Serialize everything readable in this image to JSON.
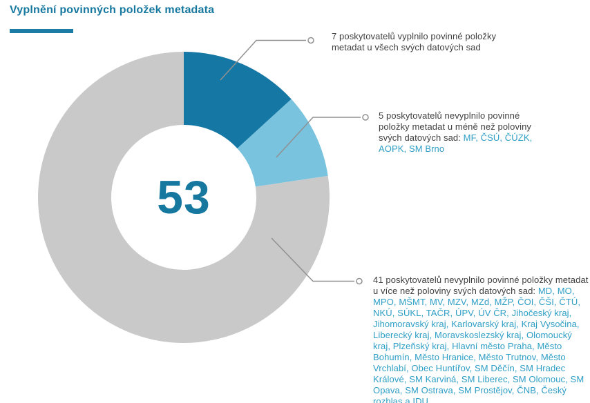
{
  "title": "Vyplnění povinných položek metadata",
  "colors": {
    "accent": "#16789f",
    "segment_dark_blue": "#1578a4",
    "segment_light_blue": "#79c3de",
    "segment_gray": "#c9c9c9",
    "body_text": "#3f3f3f",
    "highlight_text": "#2d9ec5",
    "leader": "#909090"
  },
  "chart_data": {
    "type": "pie",
    "donut": true,
    "title": "Vyplnění povinných položek metadata",
    "center_label": "53",
    "total": 53,
    "legend_position": "none",
    "segments": [
      {
        "name": "vyplnilo povinné položky metadat u všech svých datových sad",
        "value": 7,
        "color": "#1578a4"
      },
      {
        "name": "nevyplnilo povinné položky metadat u méně než poloviny svých datových sad",
        "value": 5,
        "color": "#79c3de"
      },
      {
        "name": "nevyplnilo povinné položky metadat u více než poloviny svých datových sad",
        "value": 41,
        "color": "#c9c9c9"
      }
    ]
  },
  "annotations": [
    {
      "plain": "7 poskytovatelů vyplnilo povinné položky metadat u všech svých datových sad",
      "highlight": ""
    },
    {
      "plain": "5 poskytovatelů nevyplnilo povinné položky metadat u méně než poloviny svých datových sad: ",
      "highlight": "MF, ČSÚ, ČÚZK, AOPK, SM Brno"
    },
    {
      "plain": "41 poskytovatelů nevyplnilo povinné položky metadat u více než poloviny svých datových sad: ",
      "highlight": "MD, MO, MPO, MŠMT, MV, MZV, MZd, MŽP, ČOI, ČŠI, ČTÚ, NKÚ, SÚKL, TAČR, ÚPV, ÚV ČR, Jihočeský kraj, Jihomoravský kraj, Karlovarský kraj, Kraj Vysočina, Liberecký kraj, Moravskoslezský kraj, Olomoucký kraj, Plzeňský kraj, Hlavní město Praha, Město Bohumín, Město Hranice, Město Trutnov, Město Vrchlabí, Obec Huntířov, SM Děčín, SM Hradec Králové, SM Karviná, SM Liberec, SM Olomouc, SM Opava, SM Ostrava, SM Prostějov, ČNB, Český rozhlas a IDU"
    }
  ]
}
